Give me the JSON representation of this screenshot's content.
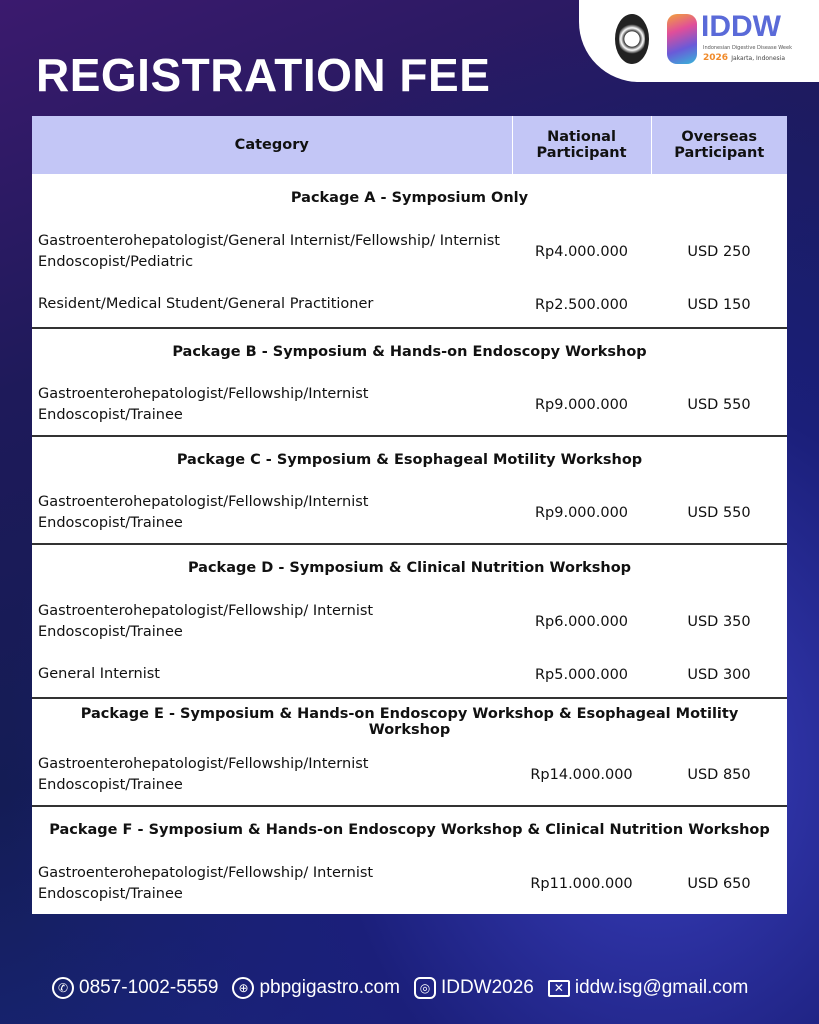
{
  "title": "REGISTRATION FEE",
  "logo": {
    "name": "IDDW",
    "subtitle": "Indonesian Digestive Disease Week",
    "year": "2026",
    "location": "Jakarta, Indonesia"
  },
  "table": {
    "headers": {
      "category": "Category",
      "national": "National Participant",
      "overseas": "Overseas Participant"
    },
    "packages": [
      {
        "name": "Package A - Symposium Only",
        "rows": [
          {
            "category": "Gastroenterohepatologist/General Internist/Fellowship/ Internist Endoscopist/Pediatric",
            "national": "Rp4.000.000",
            "overseas": "USD 250"
          },
          {
            "category": "Resident/Medical Student/General Practitioner",
            "national": "Rp2.500.000",
            "overseas": "USD 150"
          }
        ]
      },
      {
        "name": "Package B - Symposium & Hands-on Endoscopy Workshop",
        "rows": [
          {
            "category": "Gastroenterohepatologist/Fellowship/Internist Endoscopist/Trainee",
            "national": "Rp9.000.000",
            "overseas": "USD 550"
          }
        ]
      },
      {
        "name": "Package C - Symposium & Esophageal Motility Workshop",
        "rows": [
          {
            "category": "Gastroenterohepatologist/Fellowship/Internist Endoscopist/Trainee",
            "national": "Rp9.000.000",
            "overseas": "USD 550"
          }
        ]
      },
      {
        "name": "Package D - Symposium & Clinical Nutrition Workshop",
        "rows": [
          {
            "category": "Gastroenterohepatologist/Fellowship/ Internist Endoscopist/Trainee",
            "national": "Rp6.000.000",
            "overseas": "USD 350"
          },
          {
            "category": "General Internist",
            "national": "Rp5.000.000",
            "overseas": "USD 300"
          }
        ]
      },
      {
        "name": "Package E - Symposium & Hands-on Endoscopy Workshop & Esophageal Motility Workshop",
        "rows": [
          {
            "category": "Gastroenterohepatologist/Fellowship/Internist Endoscopist/Trainee",
            "national": "Rp14.000.000",
            "overseas": "USD 850"
          }
        ]
      },
      {
        "name": "Package F - Symposium & Hands-on Endoscopy Workshop & Clinical Nutrition Workshop",
        "rows": [
          {
            "category": "Gastroenterohepatologist/Fellowship/ Internist Endoscopist/Trainee",
            "national": "Rp11.000.000",
            "overseas": "USD 650"
          }
        ]
      }
    ]
  },
  "footer": {
    "phone": "0857-1002-5559",
    "website": "pbpgigastro.com",
    "instagram": "IDDW2026",
    "email": "iddw.isg@gmail.com"
  },
  "colors": {
    "header_bg": "#c3c6f6",
    "logo_accent": "#5a6ad8",
    "year": "#f08a2a"
  }
}
